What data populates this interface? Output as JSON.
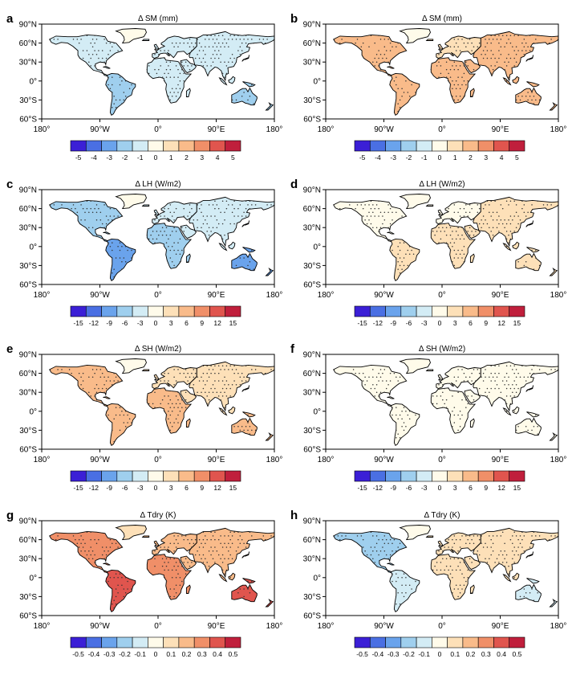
{
  "figure": {
    "lat_ticks": [
      "90°N",
      "60°N",
      "30°N",
      "0°",
      "30°S",
      "60°S"
    ],
    "lon_ticks": [
      "180°",
      "90°W",
      "0°",
      "90°E",
      "180°"
    ],
    "colors": {
      "bins": [
        "#3b1fd6",
        "#4a6fe3",
        "#6aa3ec",
        "#9fcfee",
        "#d3ecf5",
        "#fffbea",
        "#fde0b8",
        "#f9bb8a",
        "#f08f68",
        "#e0554e",
        "#c01f3c"
      ],
      "land_outline": "#000000",
      "stipple": "#333333"
    },
    "chart_data": [
      {
        "type": "heatmap",
        "label": "a",
        "title": "Δ SM (mm)",
        "colorbar_labels": [
          "-5",
          "-4",
          "-3",
          "-2",
          "-1",
          "0",
          "1",
          "2",
          "3",
          "4",
          "5"
        ],
        "regions": [
          {
            "region": "South America",
            "value": -2.5
          },
          {
            "region": "Africa",
            "value": -1.5
          },
          {
            "region": "North America",
            "value": -1.0
          },
          {
            "region": "Asia",
            "value": -1.0
          },
          {
            "region": "Europe",
            "value": -1.0
          },
          {
            "region": "Australia",
            "value": -2.0
          },
          {
            "region": "Greenland",
            "value": 0
          }
        ]
      },
      {
        "type": "heatmap",
        "label": "b",
        "title": "Δ SM (mm)",
        "colorbar_labels": [
          "-5",
          "-4",
          "-3",
          "-2",
          "-1",
          "0",
          "1",
          "2",
          "3",
          "4",
          "5"
        ],
        "regions": [
          {
            "region": "South America",
            "value": 2.0
          },
          {
            "region": "Africa",
            "value": 1.5
          },
          {
            "region": "North America",
            "value": 1.5
          },
          {
            "region": "Asia",
            "value": 1.5
          },
          {
            "region": "Europe",
            "value": 1.0
          },
          {
            "region": "Australia",
            "value": 1.5
          },
          {
            "region": "Greenland",
            "value": 0
          }
        ]
      },
      {
        "type": "heatmap",
        "label": "c",
        "title": "Δ LH (W/m2)",
        "colorbar_labels": [
          "-15",
          "-12",
          "-9",
          "-6",
          "-3",
          "0",
          "3",
          "6",
          "9",
          "12",
          "15"
        ],
        "regions": [
          {
            "region": "South America",
            "value": -9
          },
          {
            "region": "Africa",
            "value": -6
          },
          {
            "region": "North America",
            "value": -6
          },
          {
            "region": "Asia",
            "value": -4
          },
          {
            "region": "Europe",
            "value": -3
          },
          {
            "region": "Australia",
            "value": -10
          },
          {
            "region": "Greenland",
            "value": 0
          }
        ]
      },
      {
        "type": "heatmap",
        "label": "d",
        "title": "Δ LH (W/m2)",
        "colorbar_labels": [
          "-15",
          "-12",
          "-9",
          "-6",
          "-3",
          "0",
          "3",
          "6",
          "9",
          "12",
          "15"
        ],
        "regions": [
          {
            "region": "South America",
            "value": 3
          },
          {
            "region": "Africa",
            "value": 3
          },
          {
            "region": "North America",
            "value": 1
          },
          {
            "region": "Asia",
            "value": 2
          },
          {
            "region": "Europe",
            "value": 1
          },
          {
            "region": "Australia",
            "value": 3
          },
          {
            "region": "Greenland",
            "value": 0
          }
        ]
      },
      {
        "type": "heatmap",
        "label": "e",
        "title": "Δ SH (W/m2)",
        "colorbar_labels": [
          "-15",
          "-12",
          "-9",
          "-6",
          "-3",
          "0",
          "3",
          "6",
          "9",
          "12",
          "15"
        ],
        "regions": [
          {
            "region": "South America",
            "value": 6
          },
          {
            "region": "Africa",
            "value": 6
          },
          {
            "region": "North America",
            "value": 5
          },
          {
            "region": "Asia",
            "value": 4
          },
          {
            "region": "Europe",
            "value": 3
          },
          {
            "region": "Australia",
            "value": 7
          },
          {
            "region": "Greenland",
            "value": 0
          }
        ]
      },
      {
        "type": "heatmap",
        "label": "f",
        "title": "Δ SH (W/m2)",
        "colorbar_labels": [
          "-15",
          "-12",
          "-9",
          "-6",
          "-3",
          "0",
          "3",
          "6",
          "9",
          "12",
          "15"
        ],
        "regions": [
          {
            "region": "South America",
            "value": -1
          },
          {
            "region": "Africa",
            "value": -1
          },
          {
            "region": "North America",
            "value": 0
          },
          {
            "region": "Asia",
            "value": 0
          },
          {
            "region": "Europe",
            "value": 0
          },
          {
            "region": "Australia",
            "value": -1
          },
          {
            "region": "Greenland",
            "value": 0
          }
        ]
      },
      {
        "type": "heatmap",
        "label": "g",
        "title": "Δ Tdry (K)",
        "colorbar_labels": [
          "-0.5",
          "-0.4",
          "-0.3",
          "-0.2",
          "-0.1",
          "0",
          "0.1",
          "0.2",
          "0.3",
          "0.4",
          "0.5"
        ],
        "regions": [
          {
            "region": "South America",
            "value": 0.4
          },
          {
            "region": "Africa",
            "value": 0.25
          },
          {
            "region": "North America",
            "value": 0.3
          },
          {
            "region": "Asia",
            "value": 0.2
          },
          {
            "region": "Europe",
            "value": 0.15
          },
          {
            "region": "Australia",
            "value": 0.4
          },
          {
            "region": "Greenland",
            "value": 0.1
          }
        ]
      },
      {
        "type": "heatmap",
        "label": "h",
        "title": "Δ Tdry (K)",
        "colorbar_labels": [
          "-0.5",
          "-0.4",
          "-0.3",
          "-0.2",
          "-0.1",
          "0",
          "0.1",
          "0.2",
          "0.3",
          "0.4",
          "0.5"
        ],
        "regions": [
          {
            "region": "South America",
            "value": -0.05
          },
          {
            "region": "Africa",
            "value": 0.05
          },
          {
            "region": "North America",
            "value": -0.15
          },
          {
            "region": "Asia",
            "value": 0.1
          },
          {
            "region": "Europe",
            "value": 0.05
          },
          {
            "region": "Australia",
            "value": -0.1
          },
          {
            "region": "Greenland",
            "value": 0
          }
        ]
      }
    ]
  }
}
